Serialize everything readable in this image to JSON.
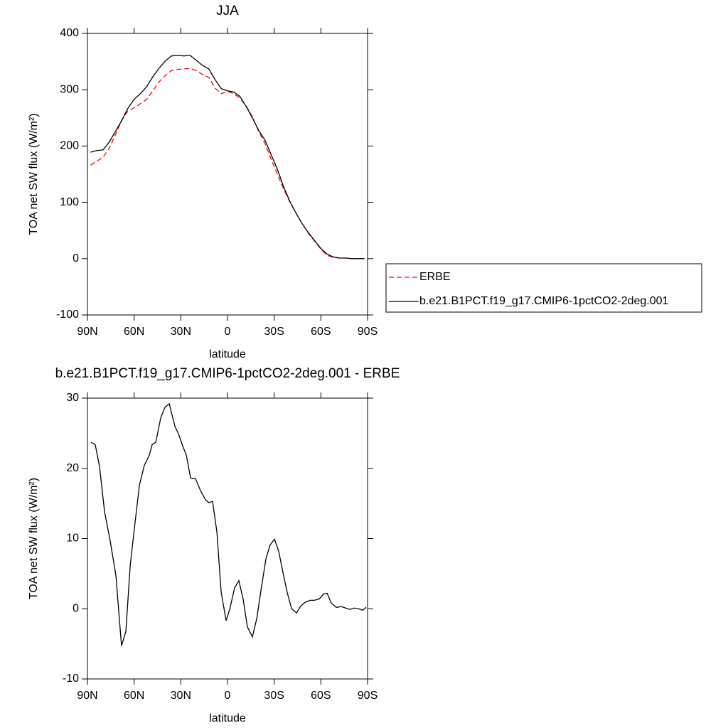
{
  "chart_data": [
    {
      "type": "line",
      "title": "JJA",
      "xlabel": "latitude",
      "ylabel": "TOA net SW flux (W/m²)",
      "x": [
        88,
        84,
        80,
        76,
        72,
        68,
        64,
        60,
        56,
        52,
        48,
        44,
        40,
        36,
        32,
        28,
        24,
        20,
        16,
        12,
        8,
        4,
        0,
        -4,
        -8,
        -12,
        -16,
        -20,
        -24,
        -28,
        -32,
        -36,
        -40,
        -44,
        -48,
        -52,
        -56,
        -60,
        -64,
        -68,
        -72,
        -76,
        -80,
        -84,
        -88
      ],
      "series": [
        {
          "name": "ERBE",
          "color": "#ff0000",
          "dashed": true,
          "values": [
            166,
            173,
            180,
            196,
            220,
            246,
            262,
            268,
            275,
            283,
            298,
            314,
            325,
            334,
            336,
            337,
            338,
            334,
            327,
            322,
            303,
            293,
            297,
            293,
            285,
            271,
            252,
            226,
            205,
            177,
            150,
            124,
            101,
            81,
            62,
            45,
            31,
            17,
            6,
            2,
            1,
            1,
            0,
            0,
            0
          ]
        },
        {
          "name": "b.e21.B1PCT.f19_g17.CMIP6-1pctCO2-2deg.001",
          "color": "#000000",
          "dashed": false,
          "values": [
            189,
            192,
            193,
            207,
            226,
            245,
            267,
            283,
            293,
            305,
            323,
            338,
            351,
            360,
            361,
            360,
            361,
            352,
            343,
            337,
            318,
            302,
            298,
            296,
            288,
            270,
            250,
            228,
            211,
            185,
            159,
            128,
            102,
            81,
            62,
            46,
            32,
            18,
            8,
            3,
            1,
            1,
            0,
            0,
            0
          ]
        }
      ],
      "xlim": [
        90,
        -90
      ],
      "xticks": [
        {
          "value": 90,
          "label": "90N"
        },
        {
          "value": 60,
          "label": "60N"
        },
        {
          "value": 30,
          "label": "30N"
        },
        0,
        {
          "value": -30,
          "label": "30S"
        },
        {
          "value": -60,
          "label": "60S"
        },
        {
          "value": -90,
          "label": "90S"
        }
      ],
      "ylim": [
        -100,
        400
      ],
      "yticks": [
        -100,
        0,
        100,
        200,
        300,
        400
      ],
      "legend": "right"
    },
    {
      "type": "line",
      "title": "b.e21.B1PCT.f19_g17.CMIP6-1pctCO2-2deg.001 - ERBE",
      "xlabel": "latitude",
      "ylabel": "TOA net SW flux (W/m²)",
      "x": [
        87.7,
        85,
        82.2,
        79,
        75.4,
        71.7,
        70.4,
        68.1,
        65.3,
        62.5,
        59.4,
        56.6,
        53.5,
        50.2,
        48.4,
        46.1,
        42.9,
        40.2,
        37.4,
        36.1,
        33.8,
        31.5,
        28.3,
        26.5,
        23.7,
        20.5,
        17.3,
        14.1,
        11.8,
        9.6,
        6.8,
        4.1,
        0.9,
        -1.4,
        -4.6,
        -7.3,
        -10.1,
        -12.8,
        -16,
        -18.8,
        -21.9,
        -24.7,
        -27.4,
        -30.2,
        -32.9,
        -35.7,
        -38.4,
        -41.2,
        -44.4,
        -47.1,
        -49.8,
        -53,
        -55.8,
        -59,
        -61.7,
        -64,
        -66.7,
        -69.9,
        -73.2,
        -75.9,
        -78.6,
        -81.4,
        -84.1,
        -86.9,
        -89.1
      ],
      "series": [
        {
          "color": "#000000",
          "dashed": false,
          "values": [
            23.7,
            23.4,
            20.2,
            13.8,
            9.7,
            4.7,
            1.1,
            -5.3,
            -3.2,
            6.2,
            12.3,
            17.6,
            20.4,
            21.9,
            23.4,
            23.7,
            27.2,
            28.7,
            29.2,
            28.0,
            26.0,
            24.9,
            22.9,
            21.9,
            18.6,
            18.5,
            16.8,
            15.5,
            15.1,
            15.3,
            10.9,
            2.4,
            -1.7,
            -0.1,
            3.0,
            4.0,
            1.3,
            -2.6,
            -4.0,
            -1.4,
            3.2,
            7.1,
            9.1,
            9.9,
            8.2,
            5.1,
            2.3,
            0.0,
            -0.6,
            0.4,
            0.9,
            1.2,
            1.2,
            1.4,
            2.1,
            2.2,
            0.8,
            0.2,
            0.3,
            0.1,
            -0.1,
            0.1,
            0.0,
            -0.2,
            0.2
          ]
        }
      ],
      "xlim": [
        90,
        -90
      ],
      "xticks": [
        {
          "value": 90,
          "label": "90N"
        },
        {
          "value": 60,
          "label": "60N"
        },
        {
          "value": 30,
          "label": "30N"
        },
        0,
        {
          "value": -30,
          "label": "30S"
        },
        {
          "value": -60,
          "label": "60S"
        },
        {
          "value": -90,
          "label": "90S"
        }
      ],
      "ylim": [
        -10,
        30
      ],
      "yticks": [
        -10,
        0,
        10,
        20,
        30
      ]
    }
  ]
}
